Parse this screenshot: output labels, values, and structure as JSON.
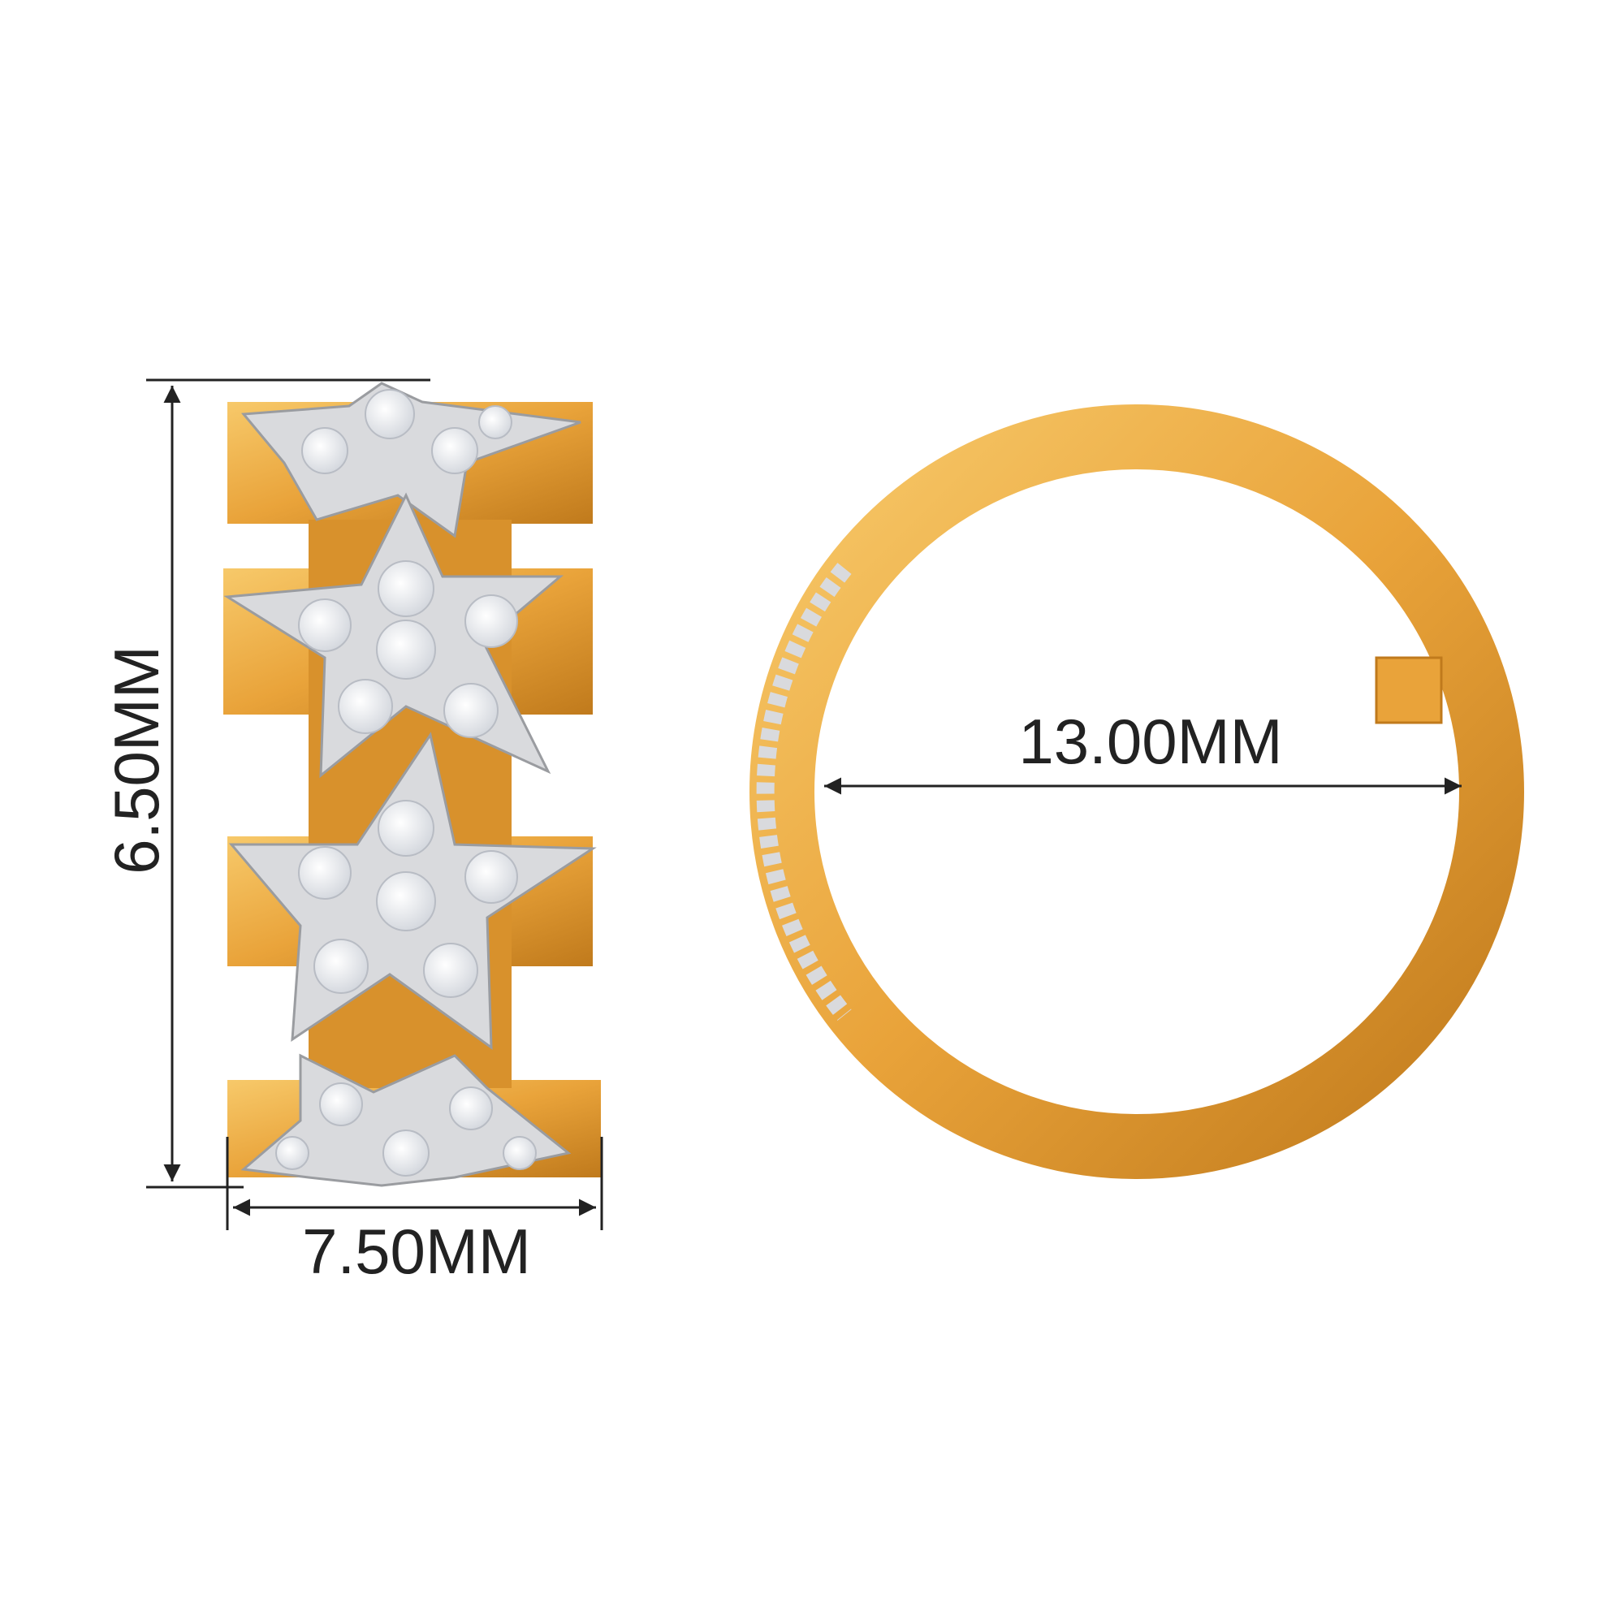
{
  "dimensions": {
    "height_label": "6.50MM",
    "width_label": "7.50MM",
    "diameter_label": "13.00MM"
  },
  "colors": {
    "gold": "#e9a33a",
    "gold_light": "#f7c96a",
    "gold_dark": "#c07a1c",
    "diamond": "#f2f4f7",
    "metal_white": "#d9dadd",
    "dimension_line": "#222222"
  }
}
